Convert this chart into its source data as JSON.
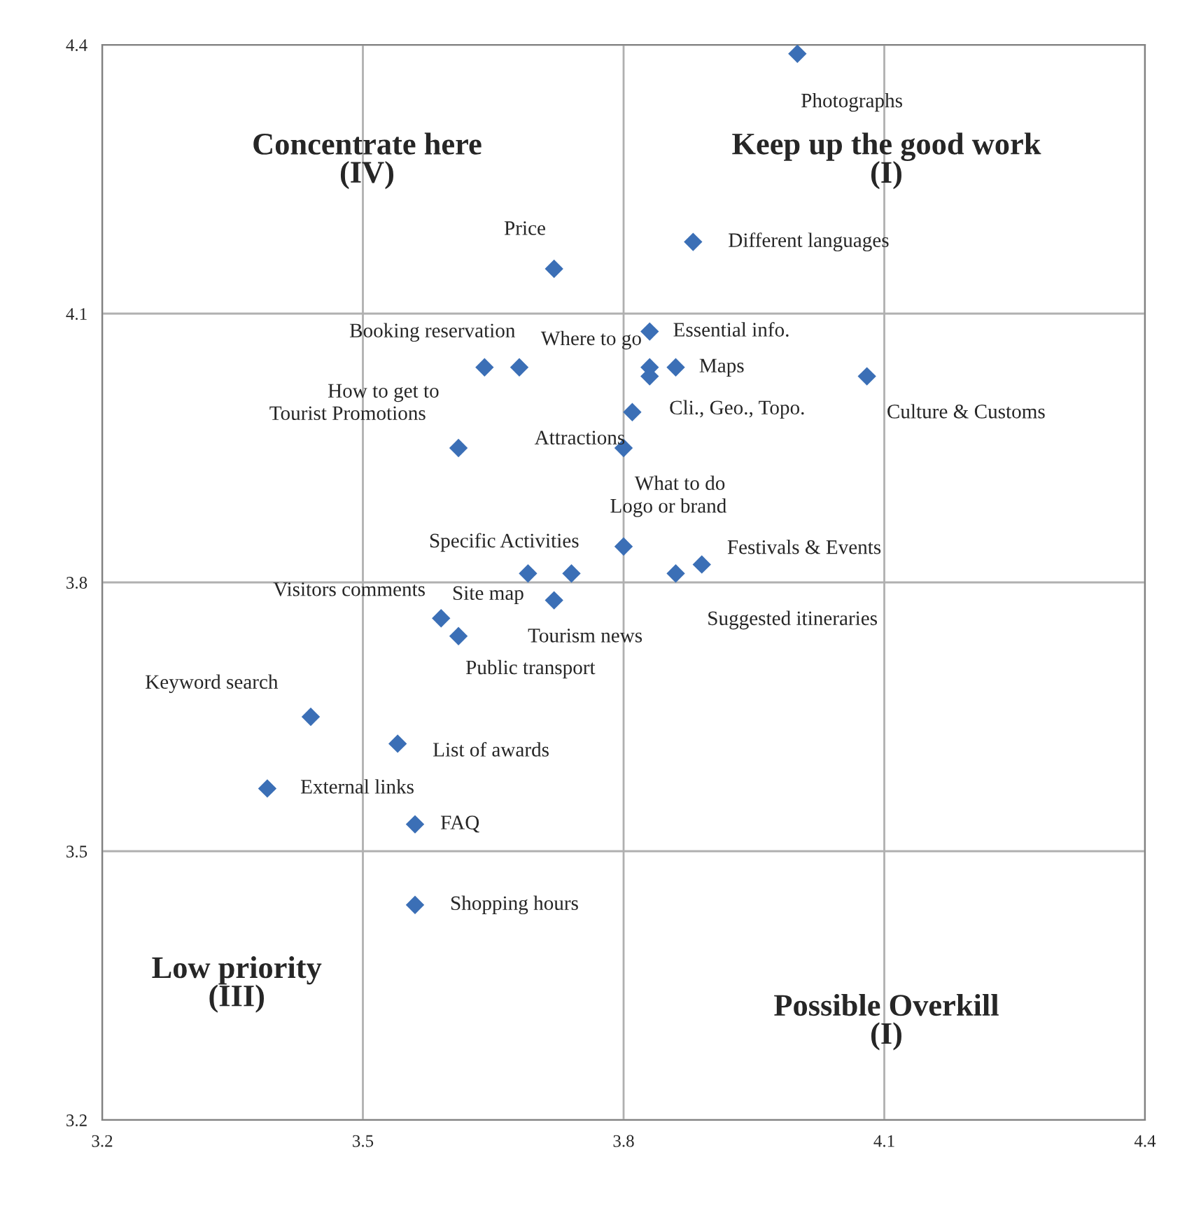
{
  "chart_data": {
    "type": "scatter",
    "marker": "diamond",
    "grid": true,
    "legend": false,
    "xlim": [
      3.2,
      4.4
    ],
    "ylim": [
      3.2,
      4.4
    ],
    "xticks": [
      3.2,
      3.5,
      3.8,
      4.1,
      4.4
    ],
    "yticks": [
      3.2,
      3.5,
      3.8,
      4.1,
      4.4
    ],
    "series": [
      {
        "color": "#3b6fb6",
        "x": [
          4.0,
          3.88,
          3.72,
          3.83,
          3.83,
          3.86,
          3.83,
          4.08,
          3.68,
          3.64,
          3.61,
          3.81,
          3.8,
          3.8,
          3.74,
          3.69,
          3.72,
          3.86,
          3.89,
          3.59,
          3.61,
          3.44,
          3.54,
          3.39,
          3.56,
          3.56
        ],
        "values": [
          4.39,
          4.18,
          4.15,
          4.08,
          4.04,
          4.04,
          4.03,
          4.03,
          4.04,
          4.04,
          3.95,
          3.99,
          3.95,
          3.84,
          3.81,
          3.81,
          3.78,
          3.81,
          3.82,
          3.76,
          3.74,
          3.65,
          3.62,
          3.57,
          3.53,
          3.44
        ]
      }
    ],
    "annotations": [
      {
        "text": "Photographs",
        "x": 4.0,
        "y": 4.39
      },
      {
        "text": "Different languages",
        "x": 3.88,
        "y": 4.18
      },
      {
        "text": "Price",
        "x": 3.72,
        "y": 4.15
      },
      {
        "text": "Essential info.",
        "x": 3.83,
        "y": 4.08
      },
      {
        "text": "Where to go",
        "x": 3.83,
        "y": 4.04
      },
      {
        "text": "Maps",
        "x": 3.86,
        "y": 4.04
      },
      {
        "text": "Cli., Geo., Topo.",
        "x": 3.83,
        "y": 4.03
      },
      {
        "text": "Culture & Customs",
        "x": 4.08,
        "y": 4.03
      },
      {
        "text": "Booking reservation",
        "x": 3.68,
        "y": 4.04
      },
      {
        "text": "How to get to",
        "x": 3.64,
        "y": 4.04
      },
      {
        "text": "Tourist Promotions",
        "x": 3.61,
        "y": 3.95
      },
      {
        "text": "Attractions",
        "x": 3.81,
        "y": 3.99
      },
      {
        "text": "What to do",
        "x": 3.8,
        "y": 3.95
      },
      {
        "text": "Logo or brand",
        "x": 3.8,
        "y": 3.84
      },
      {
        "text": "Specific Activities",
        "x": 3.74,
        "y": 3.81
      },
      {
        "text": "Site map",
        "x": 3.69,
        "y": 3.81
      },
      {
        "text": "Tourism news",
        "x": 3.72,
        "y": 3.78
      },
      {
        "text": "Suggested itineraries",
        "x": 3.86,
        "y": 3.81
      },
      {
        "text": "Festivals & Events",
        "x": 3.89,
        "y": 3.82
      },
      {
        "text": "Visitors comments",
        "x": 3.59,
        "y": 3.76
      },
      {
        "text": "Public transport",
        "x": 3.61,
        "y": 3.74
      },
      {
        "text": "Keyword search",
        "x": 3.44,
        "y": 3.65
      },
      {
        "text": "List of awards",
        "x": 3.54,
        "y": 3.62
      },
      {
        "text": "External links",
        "x": 3.39,
        "y": 3.57
      },
      {
        "text": "FAQ",
        "x": 3.56,
        "y": 3.53
      },
      {
        "text": "Shopping hours",
        "x": 3.56,
        "y": 3.44
      },
      "Concentrate here\n(IV)",
      "Keep up the good work\n(I)",
      "Low priority\n(III)",
      "Possible Overkill\n(I)"
    ]
  }
}
